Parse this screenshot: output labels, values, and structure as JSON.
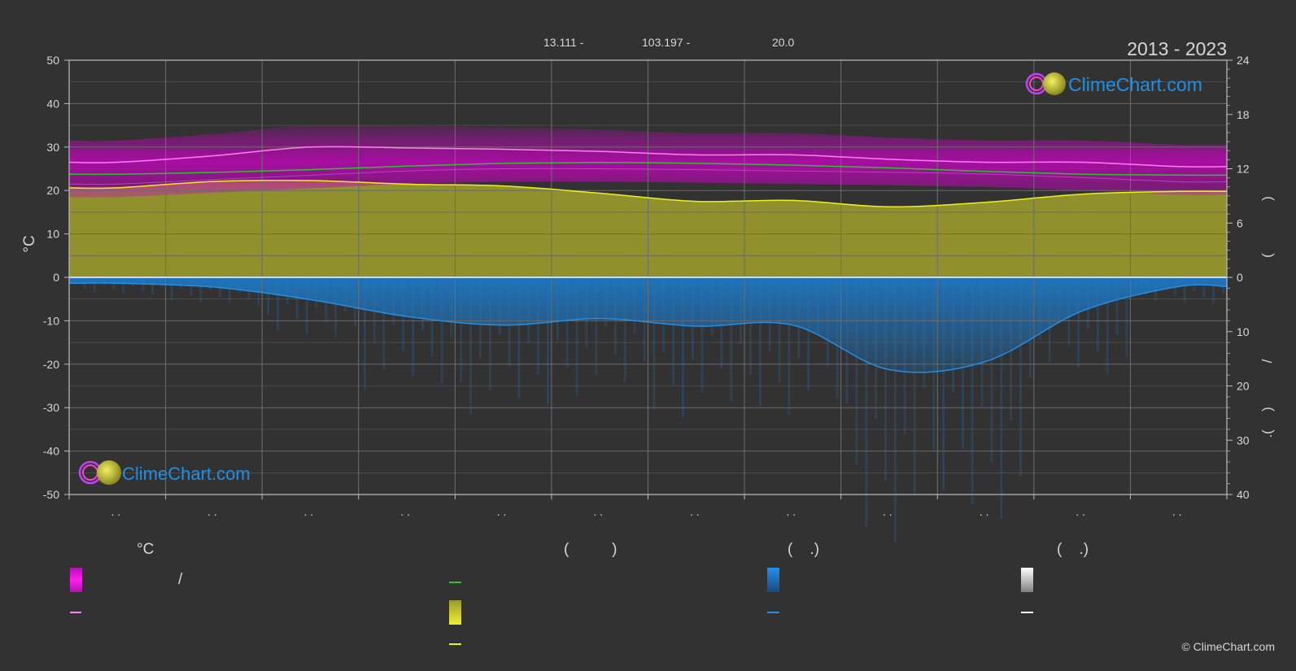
{
  "header": {
    "lat": "13.111 -",
    "lon": "103.197 -",
    "elev": "20.0",
    "years": "2013 - 2023"
  },
  "logo": {
    "text": "ClimeChart.com"
  },
  "copyright": "© ClimeChart.com",
  "legend": {
    "temp_head": "°C",
    "sun_head": "(          )",
    "rain_head": "(    .)",
    "snow_head": "(    .)",
    "slash": "/"
  },
  "colors": {
    "background": "#323232",
    "temp_band": "#d000c8",
    "max_line": "#ff80f0",
    "daylight_line": "#30c030",
    "sunshine_fill": "#a8a82c",
    "sunshine_line": "#f0f020",
    "rain": "#1e7ac8",
    "rain_line": "#2090e8",
    "snow_line": "#ffffff"
  },
  "chart_data": {
    "type": "line",
    "months": 12,
    "x_tick_labels": [
      ". .",
      ". .",
      ". .",
      ". .",
      ". .",
      ". .",
      ". .",
      ". .",
      ". .",
      ". .",
      ". .",
      ". ."
    ],
    "y_left": {
      "label": "°C",
      "ticks": [
        50,
        40,
        30,
        20,
        10,
        0,
        -10,
        -20,
        -30,
        -40,
        -50
      ],
      "range": [
        -50,
        50
      ]
    },
    "y_right_top": {
      "ticks": [
        24,
        18,
        12,
        6,
        0
      ],
      "range": [
        0,
        24
      ]
    },
    "y_right_bottom": {
      "ticks": [
        0,
        10,
        20,
        30,
        40
      ],
      "range": [
        0,
        40
      ]
    },
    "right_axis_glyphs": [
      ")",
      "(",
      "/",
      ")",
      "(",
      "."
    ],
    "series": [
      {
        "key": "temp_max_mean",
        "values": [
          26.5,
          28,
          30,
          29.8,
          29.5,
          29,
          28.2,
          28.2,
          27.2,
          26.5,
          26.5,
          25.5
        ]
      },
      {
        "key": "temp_min_mean",
        "values": [
          21.5,
          22.5,
          23.5,
          24.5,
          25,
          25,
          24.8,
          24.5,
          24.2,
          23.8,
          23,
          22
        ]
      },
      {
        "key": "daylight_hours",
        "values": [
          11.4,
          11.6,
          11.9,
          12.3,
          12.6,
          12.7,
          12.6,
          12.4,
          12.1,
          11.7,
          11.4,
          11.3
        ]
      },
      {
        "key": "sunshine_hours",
        "values": [
          9.9,
          10.6,
          10.7,
          10.3,
          10.1,
          9.3,
          8.4,
          8.5,
          7.8,
          8.3,
          9.2,
          9.5
        ]
      },
      {
        "key": "rain_mm",
        "values": [
          1.1,
          1.8,
          4.1,
          7.2,
          8.8,
          7.6,
          9.0,
          8.8,
          17.0,
          15.5,
          6.2,
          1.7
        ]
      }
    ]
  }
}
